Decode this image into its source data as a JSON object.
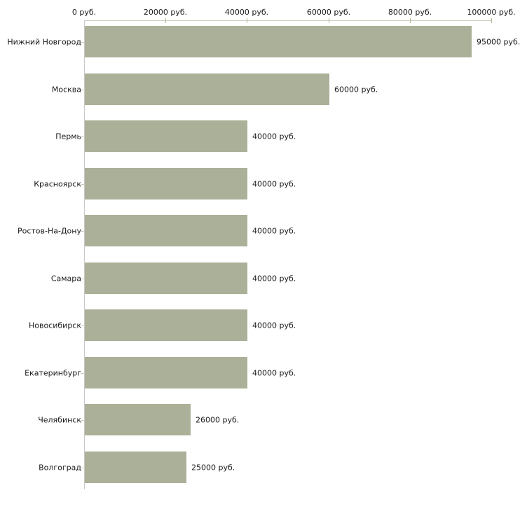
{
  "chart_data": {
    "type": "bar",
    "orientation": "horizontal",
    "title": "",
    "xlabel": "",
    "ylabel": "",
    "currency_suffix": "руб.",
    "categories": [
      "Нижний Новгород",
      "Москва",
      "Пермь",
      "Красноярск",
      "Ростов-На-Дону",
      "Самара",
      "Новосибирск",
      "Екатеринбург",
      "Челябинск",
      "Волгоград"
    ],
    "values": [
      95000,
      60000,
      40000,
      40000,
      40000,
      40000,
      40000,
      40000,
      26000,
      25000
    ],
    "value_labels": [
      "95000 руб.",
      "60000 руб.",
      "40000 руб.",
      "40000 руб.",
      "40000 руб.",
      "40000 руб.",
      "40000 руб.",
      "40000 руб.",
      "26000 руб.",
      "25000 руб."
    ],
    "x_axis": {
      "position": "top",
      "range": [
        0,
        100000
      ],
      "ticks": [
        0,
        20000,
        40000,
        60000,
        80000,
        100000
      ],
      "tick_labels": [
        "0 руб.",
        "20000 руб.",
        "40000 руб.",
        "60000 руб.",
        "80000 руб.",
        "100000 руб."
      ]
    },
    "legend": "none",
    "grid": "off",
    "colors": {
      "bar": "#abb098",
      "x_axis_line": "#ccccc0",
      "x_tick": "#b6b694",
      "y_axis_line": "#c8c8c8",
      "y_tick": "#ccccbe",
      "text": "#1a1a1a",
      "background": "#ffffff"
    }
  }
}
